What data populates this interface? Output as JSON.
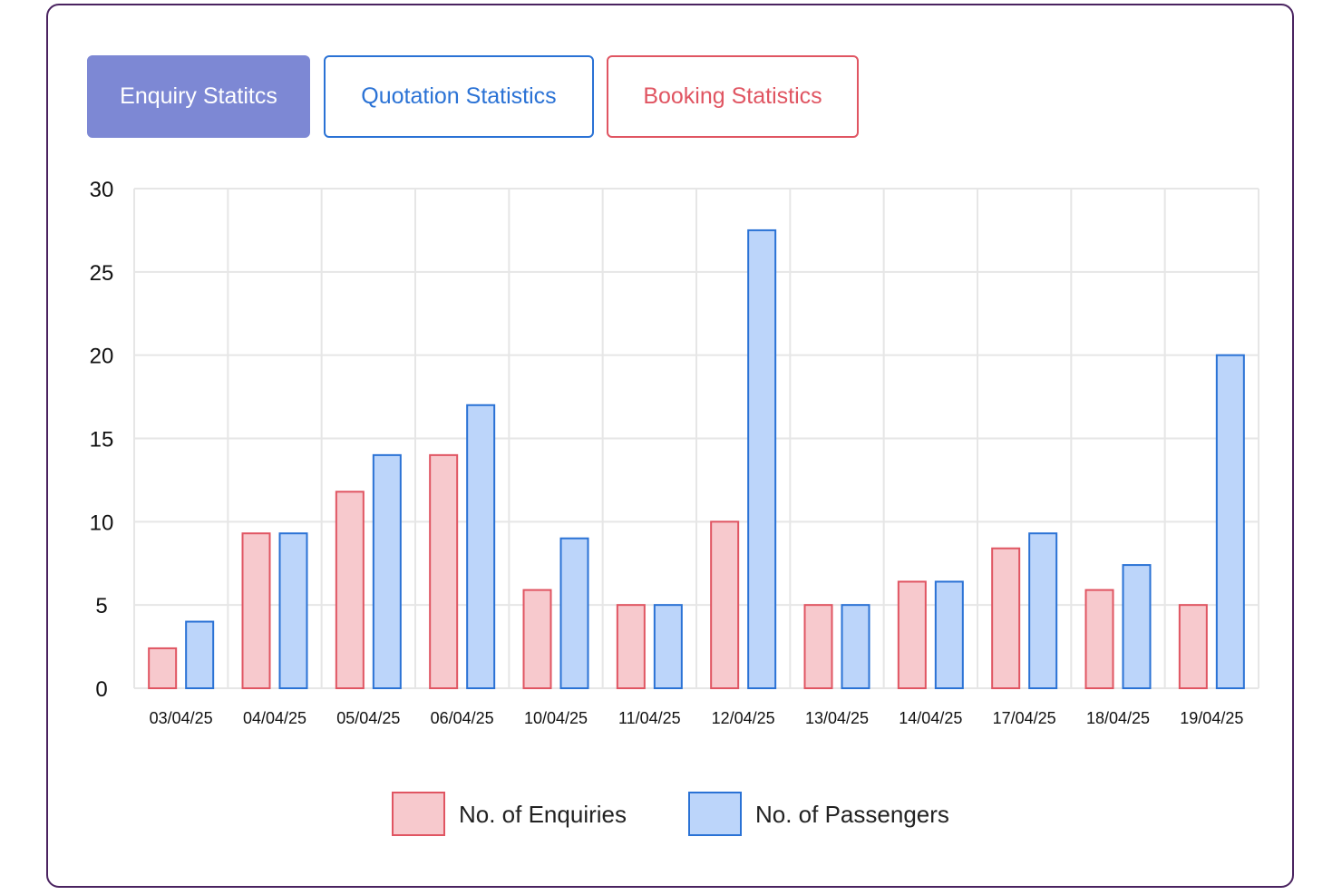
{
  "tabs": [
    {
      "label": "Enquiry Statitcs",
      "active": true
    },
    {
      "label": "Quotation Statistics",
      "active": false
    },
    {
      "label": "Booking Statistics",
      "active": false
    }
  ],
  "colors": {
    "enquiries_fill": "#f7c9cd",
    "enquiries_stroke": "#e05562",
    "passengers_fill": "#bcd5fa",
    "passengers_stroke": "#2a72d5",
    "grid": "#e6e6e6"
  },
  "chart_data": {
    "type": "bar",
    "categories": [
      "03/04/25",
      "04/04/25",
      "05/04/25",
      "06/04/25",
      "10/04/25",
      "11/04/25",
      "12/04/25",
      "13/04/25",
      "14/04/25",
      "17/04/25",
      "18/04/25",
      "19/04/25"
    ],
    "series": [
      {
        "name": "No. of Enquiries",
        "values": [
          2.4,
          9.3,
          11.8,
          14,
          5.9,
          5,
          10,
          5,
          6.4,
          8.4,
          5.9,
          5
        ]
      },
      {
        "name": "No. of Passengers",
        "values": [
          4,
          9.3,
          14,
          17,
          9,
          5,
          27.5,
          5,
          6.4,
          9.3,
          7.4,
          20
        ]
      }
    ],
    "ylim": [
      0,
      30
    ],
    "yticks": [
      0,
      5,
      10,
      15,
      20,
      25,
      30
    ],
    "grid": true,
    "legend_position": "bottom-center"
  }
}
